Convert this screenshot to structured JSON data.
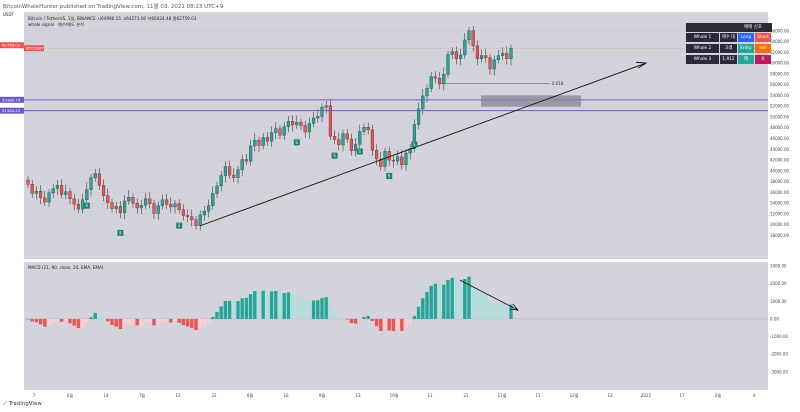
{
  "header": {
    "publisher": "BitcoinWhaleHunter published on TradingView.com, 11월 03, 2021 08:23 UTC+9"
  },
  "legend": {
    "symbol_line": "Bitcoin / TetherUS, 1일, BINANCE   시64990.15   고64273.00   저60424.48   종62759.03",
    "indicator_line": "whale signal · 매수/매도 분석"
  },
  "price_labels": {
    "top_left_currency": "USDT",
    "current_price": "62759.03",
    "current_tag": "BTCUSDT",
    "upper_zone": "53180.79",
    "lower_zone": "51164.20",
    "fib_level": "0.618"
  },
  "whale_panel": {
    "title": "매매 신호",
    "rows": [
      {
        "name": "Whale 1",
        "signal": "매수 대기",
        "direction": "Long",
        "action": "Short"
      },
      {
        "name": "Whale 2",
        "signal": "고래",
        "direction": "Entry",
        "action": "sell"
      },
      {
        "name": "Whale 3",
        "signal": "1,912",
        "direction": "매",
        "action": "숏"
      }
    ],
    "colors": {
      "long": "#2962ff",
      "short": "#ef5350",
      "entry": "#26a69a",
      "sell": "#ff6d00",
      "row_bg": "#2a2a3a"
    }
  },
  "macd_legend": "MACD (21, 90, close, 24, EMA, EMA)",
  "footer_brand": "TradingView",
  "chart_data": [
    {
      "type": "candlestick",
      "title": "Bitcoin / TetherUS",
      "y_unit": "USDT",
      "ylim": [
        24000,
        68000
      ],
      "y_ticks": [
        28000,
        30000,
        32000,
        34000,
        36000,
        38000,
        40000,
        42000,
        44000,
        46000,
        48000,
        50000,
        52000,
        54000,
        56000,
        58000,
        60000,
        62000,
        64000,
        66000
      ],
      "x_ticks": [
        "7",
        "6월",
        "14",
        "7월",
        "12",
        "22",
        "8월",
        "16",
        "9월",
        "13",
        "10월",
        "11",
        "21",
        "11월",
        "11",
        "12월",
        "13",
        "2022",
        "17",
        "2월",
        "4"
      ],
      "closes": [
        37500,
        35800,
        36200,
        35000,
        34200,
        35900,
        36700,
        37300,
        35600,
        36100,
        34800,
        33800,
        32900,
        34600,
        36500,
        38700,
        39500,
        37300,
        35400,
        34100,
        33000,
        33400,
        32200,
        34400,
        35100,
        34000,
        33100,
        33600,
        34800,
        33900,
        32100,
        33500,
        34600,
        33800,
        33300,
        33900,
        32800,
        31700,
        31500,
        30900,
        29800,
        31800,
        32500,
        33500,
        35800,
        37200,
        39100,
        40800,
        39200,
        38700,
        40200,
        42100,
        41800,
        44600,
        45700,
        44700,
        46200,
        45500,
        47100,
        47800,
        46600,
        48200,
        49200,
        48500,
        49000,
        48400,
        47200,
        48800,
        49800,
        50100,
        51800,
        52100,
        46400,
        45800,
        44800,
        46900,
        45900,
        43700,
        44900,
        47300,
        48100,
        47600,
        43800,
        42200,
        40800,
        43600,
        42000,
        41800,
        42600,
        41100,
        43300,
        44100,
        48600,
        51500,
        53900,
        55300,
        57500,
        57200,
        56200,
        57900,
        61600,
        62100,
        60800,
        61500,
        64300,
        66000,
        63200,
        60800,
        61400,
        61000,
        58900,
        60600,
        61400,
        61800,
        60800,
        62759
      ],
      "zones": [
        {
          "from": 51164.2,
          "to": 53180.79
        }
      ],
      "annotations": [
        "0.618"
      ],
      "signals": [
        {
          "label": "S",
          "index": 14
        },
        {
          "label": "S",
          "index": 22
        },
        {
          "label": "S",
          "index": 36
        },
        {
          "label": "S",
          "index": 64
        },
        {
          "label": "S",
          "index": 73
        },
        {
          "label": "S",
          "index": 79
        },
        {
          "label": "S",
          "index": 86
        },
        {
          "label": "S",
          "index": 92
        }
      ]
    },
    {
      "type": "bar",
      "title": "MACD (21, 90, close, 24, EMA, EMA)",
      "ylim": [
        -3800,
        3000
      ],
      "y_ticks": [
        3000,
        2000,
        1000,
        0,
        -1000,
        -2000,
        -3000
      ],
      "y_tick_labels": [
        "3000.00",
        "2000.00",
        "1000.00",
        "0.00",
        "-1000.00",
        "-2000.00",
        "-3000.00"
      ]
    }
  ]
}
